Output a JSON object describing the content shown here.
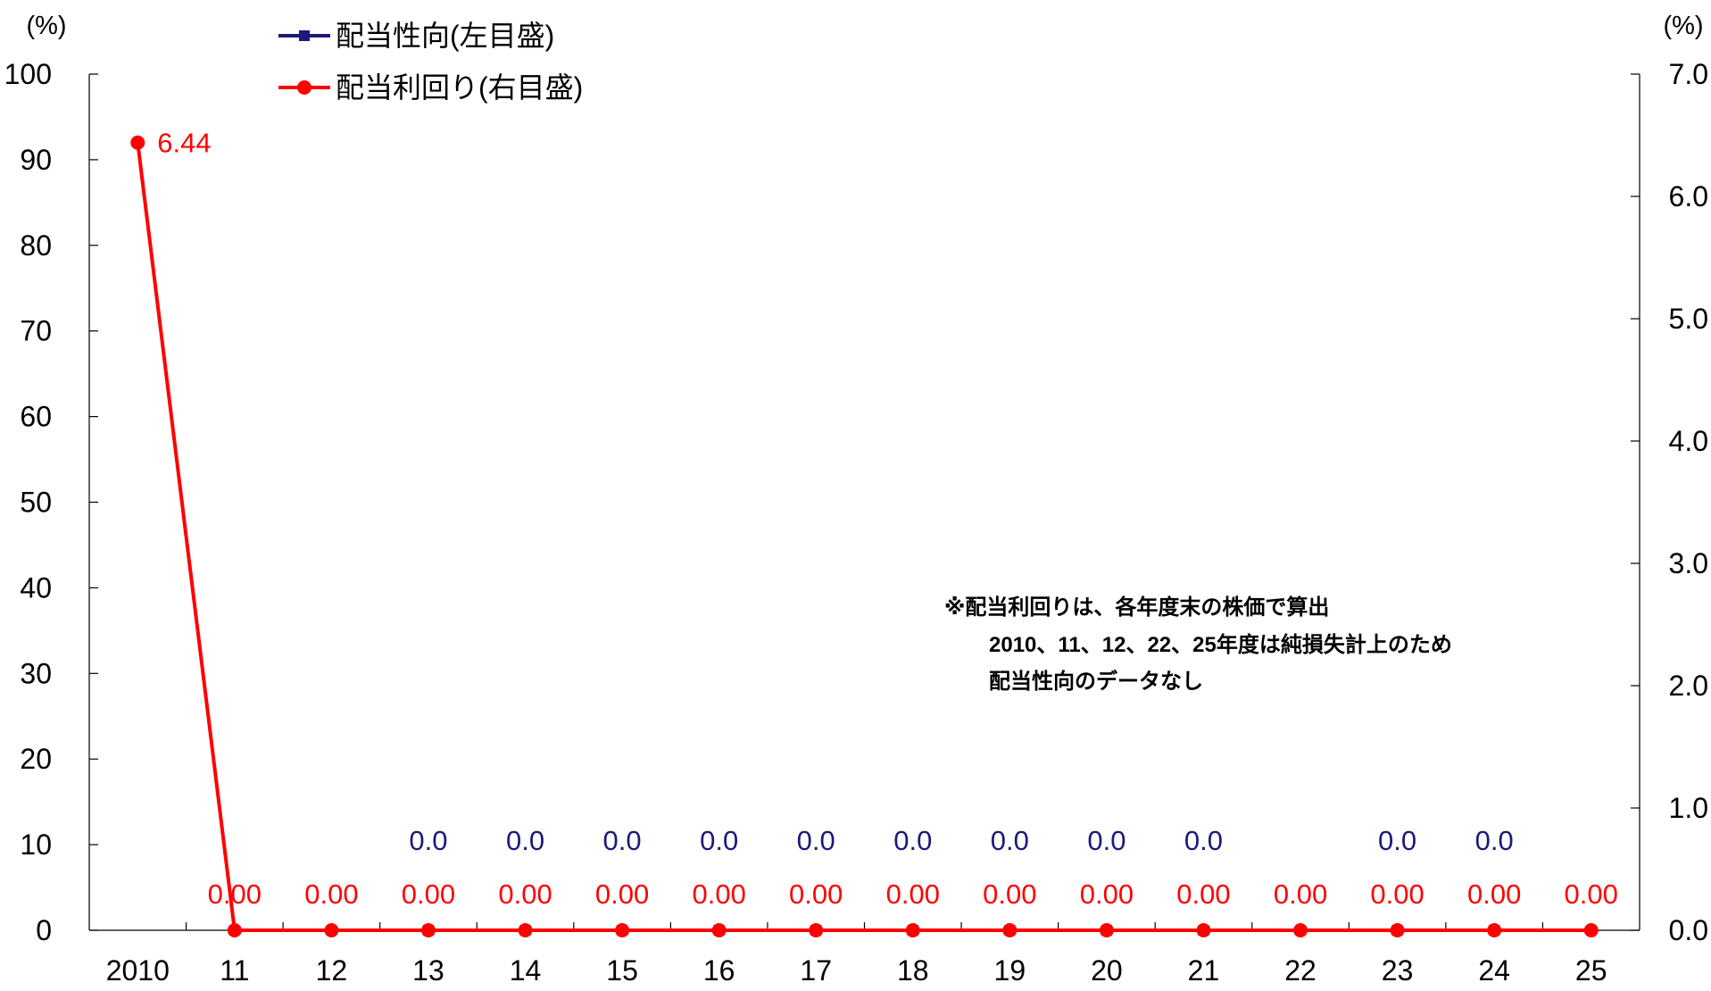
{
  "chart_data": {
    "type": "line",
    "categories": [
      "2010",
      "11",
      "12",
      "13",
      "14",
      "15",
      "16",
      "17",
      "18",
      "19",
      "20",
      "21",
      "22",
      "23",
      "24",
      "25"
    ],
    "y_left": {
      "unit": "(%)",
      "range": [
        0,
        100
      ],
      "ticks": [
        "0",
        "10",
        "20",
        "30",
        "40",
        "50",
        "60",
        "70",
        "80",
        "90",
        "100"
      ]
    },
    "y_right": {
      "unit": "(%)",
      "range": [
        0,
        7
      ],
      "ticks": [
        "0.0",
        "1.0",
        "2.0",
        "3.0",
        "4.0",
        "5.0",
        "6.0",
        "7.0"
      ]
    },
    "series": [
      {
        "name": "配当性向(左目盛)",
        "axis": "left",
        "color": "#1a1a7a",
        "marker": "square",
        "values": [
          null,
          null,
          null,
          0.0,
          0.0,
          0.0,
          0.0,
          0.0,
          0.0,
          0.0,
          0.0,
          0.0,
          null,
          0.0,
          0.0,
          null
        ],
        "labels": [
          null,
          null,
          null,
          "0.0",
          "0.0",
          "0.0",
          "0.0",
          "0.0",
          "0.0",
          "0.0",
          "0.0",
          "0.0",
          null,
          "0.0",
          "0.0",
          null
        ]
      },
      {
        "name": "配当利回り(右目盛)",
        "axis": "right",
        "color": "#ff0000",
        "marker": "circle",
        "values": [
          6.44,
          0.0,
          0.0,
          0.0,
          0.0,
          0.0,
          0.0,
          0.0,
          0.0,
          0.0,
          0.0,
          0.0,
          0.0,
          0.0,
          0.0,
          0.0
        ],
        "labels": [
          "6.44",
          "0.00",
          "0.00",
          "0.00",
          "0.00",
          "0.00",
          "0.00",
          "0.00",
          "0.00",
          "0.00",
          "0.00",
          "0.00",
          "0.00",
          "0.00",
          "0.00",
          "0.00"
        ]
      }
    ],
    "legend": "top-left",
    "grid": false,
    "annotation": [
      "※配当利回りは、各年度末の株価で算出",
      "2010、11、12、22、25年度は純損失計上のため",
      "配当性向のデータなし"
    ]
  }
}
